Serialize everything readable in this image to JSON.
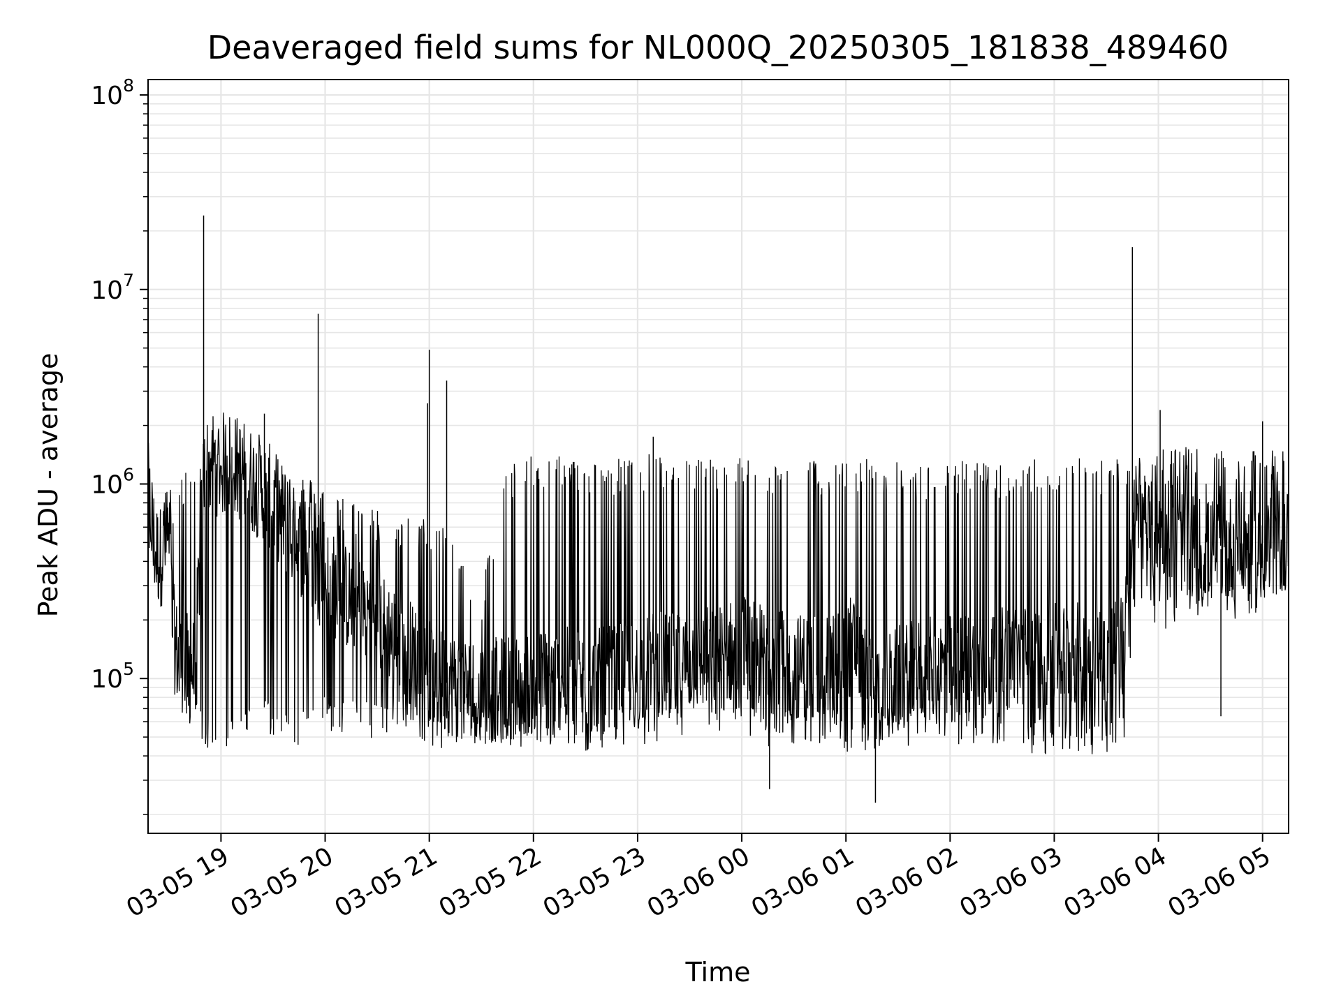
{
  "chart_data": {
    "type": "line",
    "title": "Deaveraged field sums for NL000Q_20250305_181838_489460",
    "xlabel": "Time",
    "ylabel": "Peak ADU - average",
    "yscale": "log",
    "ylim": [
      16000,
      120000000
    ],
    "xlim": [
      "2025-03-05 18:18",
      "2025-03-06 05:15"
    ],
    "grid": true,
    "line_color": "#000000",
    "grid_color": "#e6e6e6",
    "x_ticks": [
      {
        "value": "2025-03-05 19:00",
        "label": "03-05 19"
      },
      {
        "value": "2025-03-05 20:00",
        "label": "03-05 20"
      },
      {
        "value": "2025-03-05 21:00",
        "label": "03-05 21"
      },
      {
        "value": "2025-03-05 22:00",
        "label": "03-05 22"
      },
      {
        "value": "2025-03-05 23:00",
        "label": "03-05 23"
      },
      {
        "value": "2025-03-06 00:00",
        "label": "03-06 00"
      },
      {
        "value": "2025-03-06 01:00",
        "label": "03-06 01"
      },
      {
        "value": "2025-03-06 02:00",
        "label": "03-06 02"
      },
      {
        "value": "2025-03-06 03:00",
        "label": "03-06 03"
      },
      {
        "value": "2025-03-06 04:00",
        "label": "03-06 04"
      },
      {
        "value": "2025-03-06 05:00",
        "label": "03-06 05"
      }
    ],
    "y_ticks": [
      {
        "value": 100000,
        "base": "10",
        "exp": "5"
      },
      {
        "value": 1000000,
        "base": "10",
        "exp": "6"
      },
      {
        "value": 10000000,
        "base": "10",
        "exp": "7"
      },
      {
        "value": 100000000,
        "base": "10",
        "exp": "8"
      }
    ],
    "series": [
      {
        "x": [
          "2025-03-05 18:18",
          "2025-03-05 18:20",
          "2025-03-05 18:22",
          "2025-03-05 18:25",
          "2025-03-05 18:28",
          "2025-03-05 18:30",
          "2025-03-05 18:32",
          "2025-03-05 18:35",
          "2025-03-05 18:40",
          "2025-03-05 18:45",
          "2025-03-05 18:50",
          "2025-03-05 18:52",
          "2025-03-05 18:55",
          "2025-03-05 19:00",
          "2025-03-05 19:05",
          "2025-03-05 19:10",
          "2025-03-05 19:15",
          "2025-03-05 19:20",
          "2025-03-05 19:25",
          "2025-03-05 19:30",
          "2025-03-05 19:35",
          "2025-03-05 19:40",
          "2025-03-05 19:45",
          "2025-03-05 19:50",
          "2025-03-05 19:53",
          "2025-03-05 19:57",
          "2025-03-05 20:05",
          "2025-03-05 20:15",
          "2025-03-05 20:25",
          "2025-03-05 20:35",
          "2025-03-05 20:45",
          "2025-03-05 20:55",
          "2025-03-05 20:59",
          "2025-03-05 21:03",
          "2025-03-05 21:10",
          "2025-03-05 21:20",
          "2025-03-05 21:30",
          "2025-03-05 21:45",
          "2025-03-05 22:00",
          "2025-03-05 22:15",
          "2025-03-05 22:30",
          "2025-03-05 22:45",
          "2025-03-05 23:00",
          "2025-03-05 23:10",
          "2025-03-05 23:20",
          "2025-03-05 23:35",
          "2025-03-05 23:50",
          "2025-03-06 00:00",
          "2025-03-06 00:15",
          "2025-03-06 00:30",
          "2025-03-06 00:45",
          "2025-03-06 00:55",
          "2025-03-06 01:05",
          "2025-03-06 01:15",
          "2025-03-06 01:30",
          "2025-03-06 01:45",
          "2025-03-06 02:00",
          "2025-03-06 02:15",
          "2025-03-06 02:30",
          "2025-03-06 02:45",
          "2025-03-06 03:00",
          "2025-03-06 03:15",
          "2025-03-06 03:30",
          "2025-03-06 03:40",
          "2025-03-06 03:45",
          "2025-03-06 03:55",
          "2025-03-06 04:05",
          "2025-03-06 04:15",
          "2025-03-06 04:30",
          "2025-03-06 04:45",
          "2025-03-06 05:00",
          "2025-03-06 05:15"
        ],
        "y": [
          900000,
          700000,
          450000,
          420000,
          500000,
          650000,
          180000,
          130000,
          120000,
          110000,
          1100000,
          1200000,
          1300000,
          1250000,
          1300000,
          1200000,
          1100000,
          1000000,
          950000,
          800000,
          700000,
          550000,
          500000,
          450000,
          400000,
          350000,
          300000,
          250000,
          220000,
          180000,
          150000,
          120000,
          110000,
          100000,
          95000,
          90000,
          85000,
          90000,
          95000,
          100000,
          95000,
          100000,
          110000,
          120000,
          115000,
          125000,
          130000,
          150000,
          125000,
          115000,
          120000,
          130000,
          150000,
          80000,
          100000,
          110000,
          115000,
          120000,
          125000,
          130000,
          130000,
          135000,
          140000,
          150000,
          600000,
          550000,
          600000,
          500000,
          450000,
          480000,
          500000,
          520000
        ],
        "upper": [
          1200000,
          1100000,
          900000,
          800000,
          1000000,
          1100000,
          800000,
          1000000,
          1200000,
          1300000,
          1400000,
          1400000,
          1450000,
          1400000,
          1450000,
          1400000,
          1350000,
          1300000,
          1300000,
          1250000,
          1300000,
          1200000,
          1150000,
          1100000,
          1050000,
          1000000,
          900000,
          850000,
          800000,
          700000,
          700000,
          650000,
          700000,
          700000,
          600000,
          450000,
          300000,
          1300000,
          1400000,
          1450000,
          1300000,
          1350000,
          1400000,
          1450000,
          1350000,
          1400000,
          1350000,
          1400000,
          1350000,
          1300000,
          1350000,
          1300000,
          1300000,
          1400000,
          1300000,
          1250000,
          1300000,
          1350000,
          1300000,
          1350000,
          1350000,
          1400000,
          1350000,
          1400000,
          1600000,
          1500000,
          1600000,
          1550000,
          1500000,
          1450000,
          1500000,
          1500000
        ],
        "lower": [
          350000,
          350000,
          350000,
          350000,
          380000,
          400000,
          120000,
          85000,
          65000,
          55000,
          50000,
          48000,
          47000,
          47000,
          48000,
          48000,
          60000,
          70000,
          60000,
          50000,
          50000,
          50000,
          50000,
          52000,
          55000,
          60000,
          58000,
          55000,
          55000,
          55000,
          55000,
          55000,
          50000,
          45000,
          45000,
          48000,
          50000,
          48000,
          45000,
          45000,
          45000,
          48000,
          48000,
          50000,
          50000,
          52000,
          52000,
          52000,
          48000,
          48000,
          50000,
          50000,
          38000,
          45000,
          50000,
          50000,
          50000,
          48000,
          45000,
          45000,
          45000,
          45000,
          45000,
          45000,
          200000,
          200000,
          200000,
          220000,
          230000,
          220000,
          250000,
          300000
        ],
        "spikes": [
          {
            "x": "2025-03-05 18:50",
            "y": 24000000
          },
          {
            "x": "2025-03-05 19:25",
            "y": 2300000
          },
          {
            "x": "2025-03-05 19:56",
            "y": 7500000
          },
          {
            "x": "2025-03-05 20:59",
            "y": 2600000
          },
          {
            "x": "2025-03-05 21:00",
            "y": 4900000
          },
          {
            "x": "2025-03-05 21:10",
            "y": 3400000
          },
          {
            "x": "2025-03-05 23:09",
            "y": 1750000
          },
          {
            "x": "2025-03-06 03:45",
            "y": 16500000
          },
          {
            "x": "2025-03-06 04:01",
            "y": 2400000
          },
          {
            "x": "2025-03-06 05:00",
            "y": 2100000
          }
        ],
        "dips": [
          {
            "x": "2025-03-06 00:16",
            "y": 27000
          },
          {
            "x": "2025-03-06 01:17",
            "y": 23000
          },
          {
            "x": "2025-03-06 04:36",
            "y": 64000
          }
        ]
      }
    ]
  }
}
